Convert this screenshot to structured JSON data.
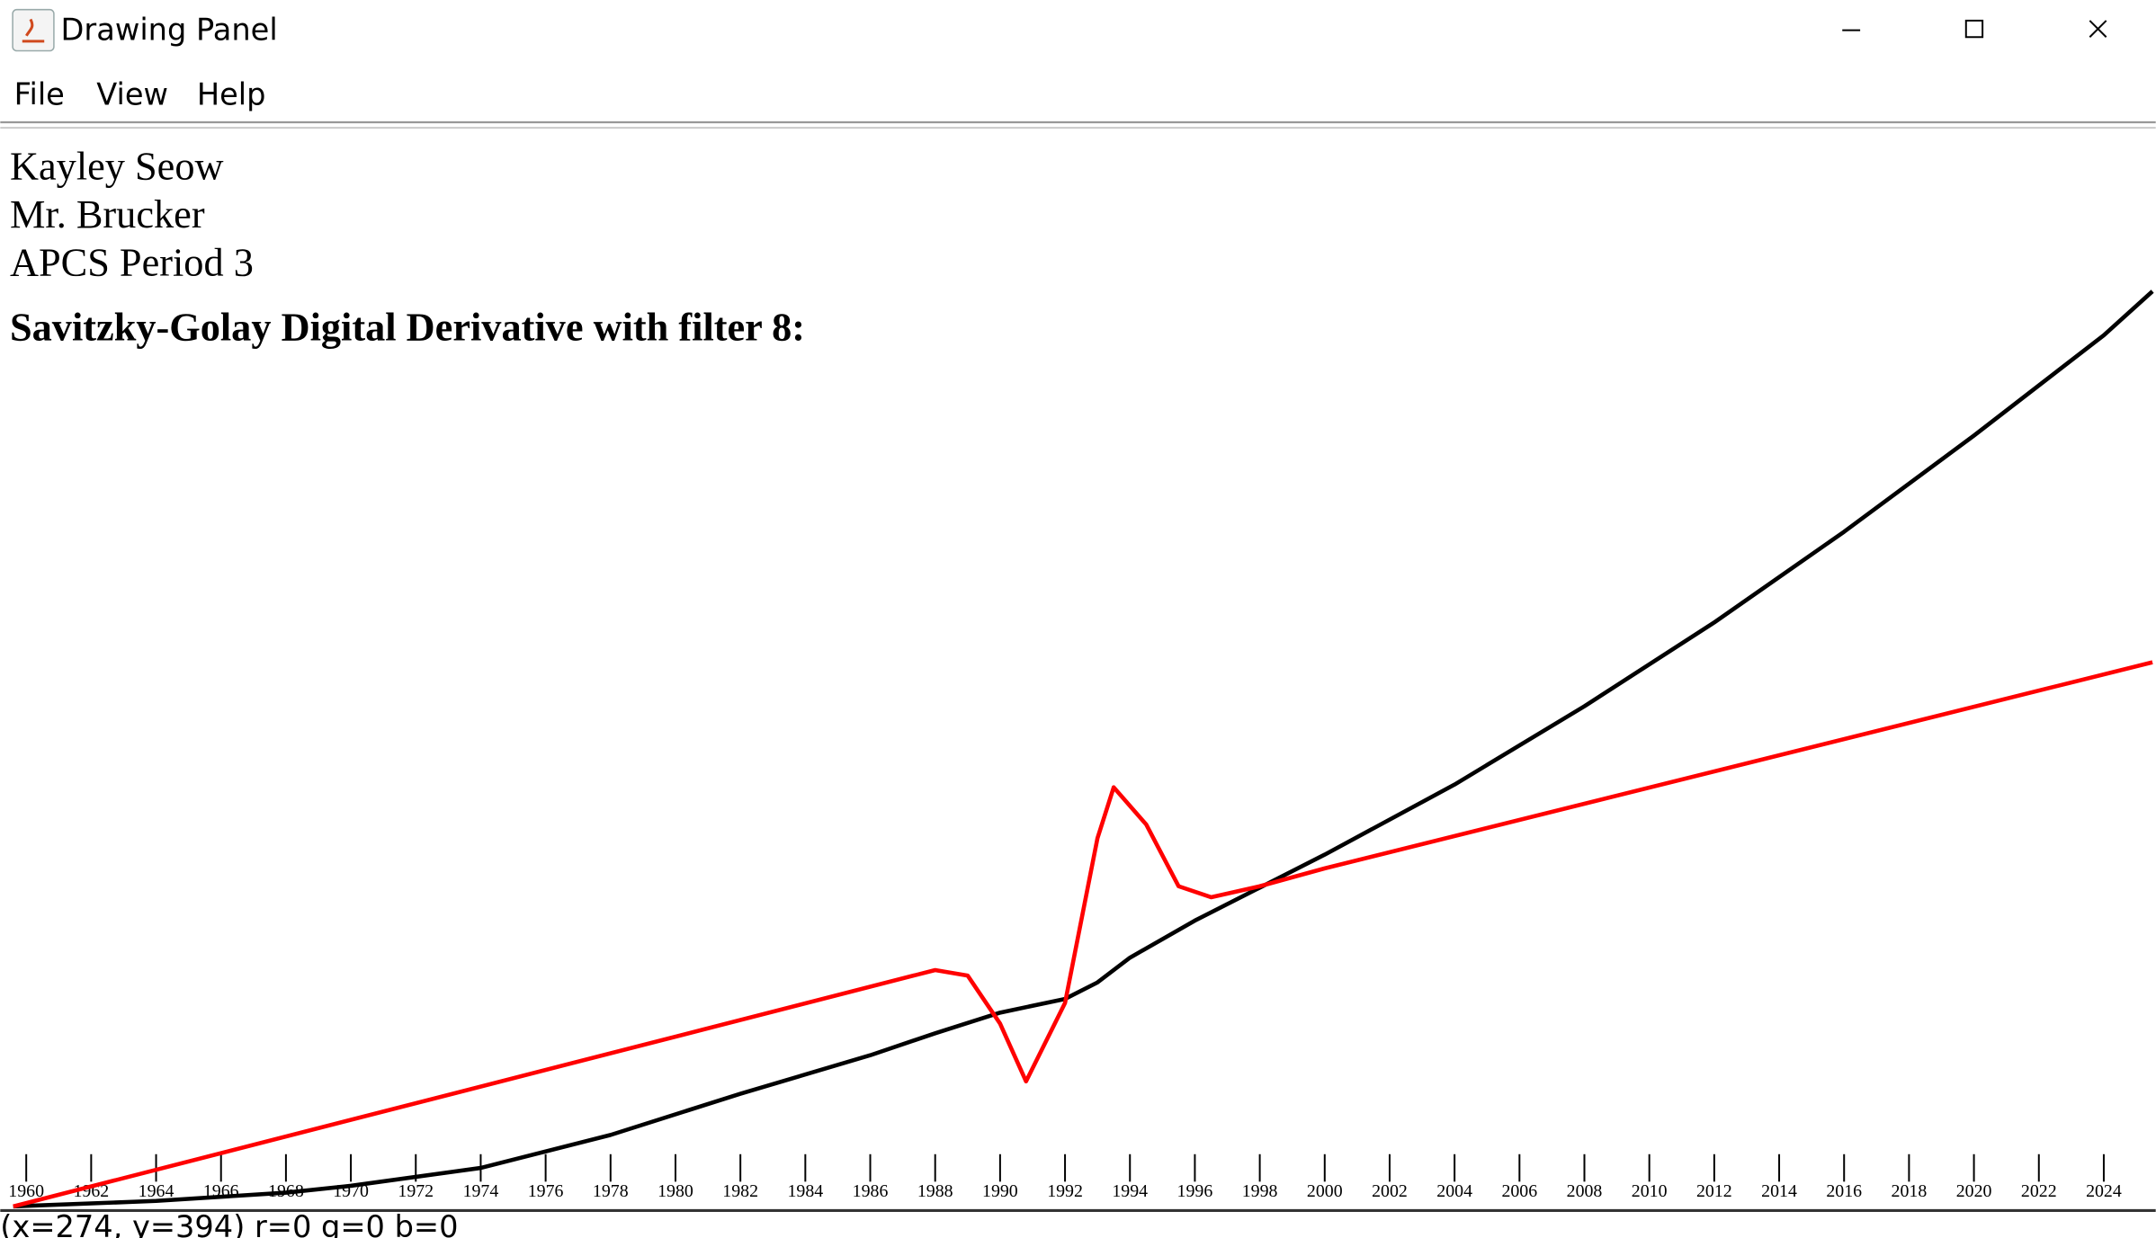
{
  "window": {
    "title": "Drawing Panel"
  },
  "menu": [
    "File",
    "View",
    "Help"
  ],
  "text_lines": [
    "Kayley Seow",
    "Mr. Brucker",
    "APCS Period 3"
  ],
  "chart_data": {
    "type": "line",
    "title": "Savitzky-Golay Digital Derivative with filter 8:",
    "xlim": [
      1959.2,
      2025.6
    ],
    "xticks": [
      1960,
      1962,
      1964,
      1966,
      1968,
      1970,
      1972,
      1974,
      1976,
      1978,
      1980,
      1982,
      1984,
      1986,
      1988,
      1990,
      1992,
      1994,
      1996,
      1998,
      2000,
      2002,
      2004,
      2006,
      2008,
      2010,
      2012,
      2014,
      2016,
      2018,
      2020,
      2022,
      2024
    ],
    "ylim": [
      0,
      700
    ],
    "series": [
      {
        "color": "#000000",
        "x": [
          1959.6,
          1964,
          1968,
          1970,
          1974,
          1978,
          1982,
          1986,
          1988,
          1990,
          1992,
          1993,
          1994,
          1996,
          1998,
          2000,
          2004,
          2008,
          2012,
          2016,
          2020,
          2024,
          2025.5
        ],
        "values": [
          0,
          4,
          10,
          15,
          28,
          52,
          82,
          110,
          126,
          141,
          151,
          163,
          181,
          208,
          232,
          256,
          307,
          364,
          425,
          491,
          561,
          634,
          666
        ]
      },
      {
        "color": "#ff0000",
        "x": [
          1959.6,
          1988,
          1989,
          1990,
          1990.8,
          1992,
          1993,
          1993.5,
          1994.5,
          1995.5,
          1996.5,
          1998,
          2000,
          2025.5
        ],
        "values": [
          0,
          172,
          168,
          133,
          91,
          148,
          268,
          305,
          278,
          233,
          225,
          233,
          246,
          396
        ]
      }
    ]
  },
  "status_bar": "(x=274, y=394)  r=0 g=0 b=0"
}
